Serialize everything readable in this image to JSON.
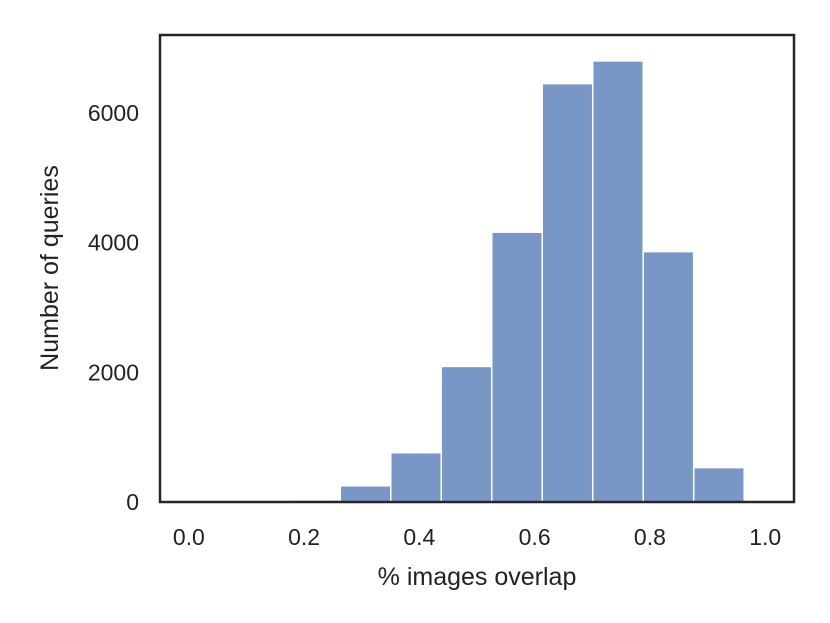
{
  "chart_data": {
    "type": "bar",
    "subtype": "histogram",
    "title": "",
    "xlabel": "% images overlap",
    "ylabel": "Number of queries",
    "bin_edges": [
      0.0,
      0.0876,
      0.1752,
      0.2628,
      0.3504,
      0.438,
      0.5256,
      0.6132,
      0.7008,
      0.7884,
      0.876,
      0.9636
    ],
    "bins": [
      {
        "x0": 0.0,
        "x1": 0.0876,
        "count": 0
      },
      {
        "x0": 0.0876,
        "x1": 0.1752,
        "count": 0
      },
      {
        "x0": 0.1752,
        "x1": 0.2628,
        "count": 30
      },
      {
        "x0": 0.2628,
        "x1": 0.3504,
        "count": 250
      },
      {
        "x0": 0.3504,
        "x1": 0.438,
        "count": 760
      },
      {
        "x0": 0.438,
        "x1": 0.5256,
        "count": 2090
      },
      {
        "x0": 0.5256,
        "x1": 0.6132,
        "count": 4160
      },
      {
        "x0": 0.6132,
        "x1": 0.7008,
        "count": 6450
      },
      {
        "x0": 0.7008,
        "x1": 0.7884,
        "count": 6800
      },
      {
        "x0": 0.7884,
        "x1": 0.876,
        "count": 3860
      },
      {
        "x0": 0.876,
        "x1": 0.9636,
        "count": 530
      }
    ],
    "xlim": [
      -0.05,
      1.05
    ],
    "ylim": [
      0,
      7200
    ],
    "xticks": [
      0.0,
      0.2,
      0.4,
      0.6,
      0.8,
      1.0
    ],
    "xtick_labels": [
      "0.0",
      "0.2",
      "0.4",
      "0.6",
      "0.8",
      "1.0"
    ],
    "yticks": [
      0,
      2000,
      4000,
      6000
    ],
    "ytick_labels": [
      "0",
      "2000",
      "4000",
      "6000"
    ],
    "grid": false,
    "legend": "none",
    "colors": {
      "bar_fill": "#7896c6",
      "bar_edge": "#ffffff",
      "frame": "#262626",
      "text": "#222222"
    }
  }
}
